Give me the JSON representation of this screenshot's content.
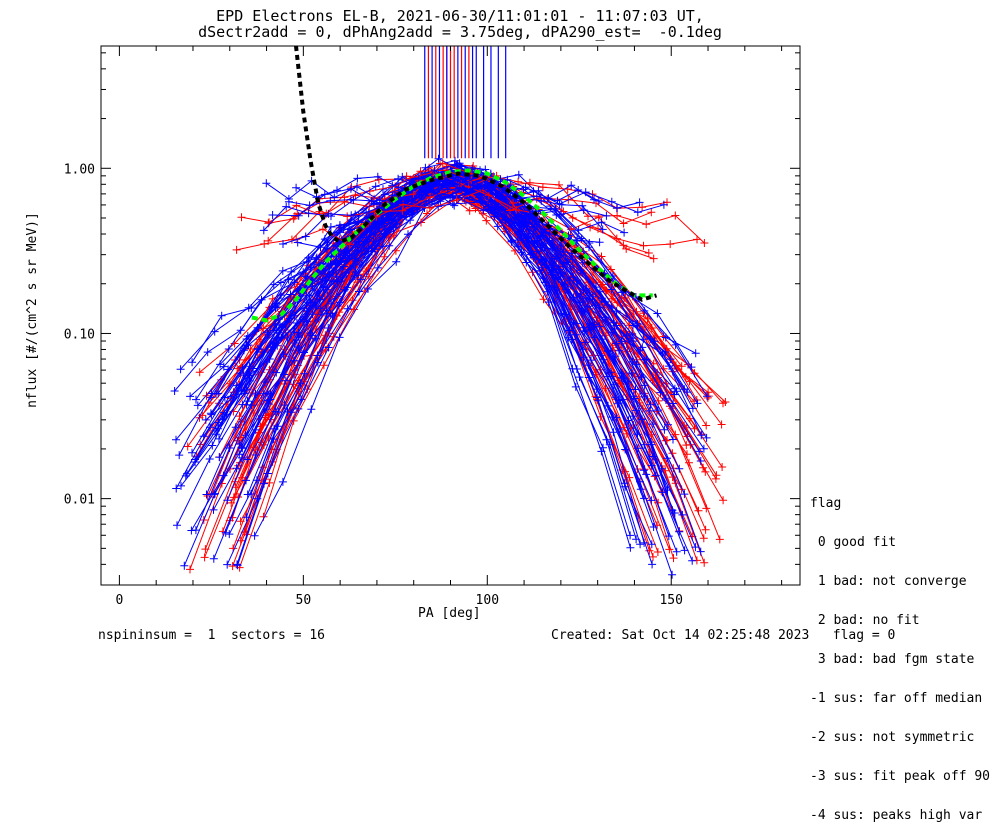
{
  "title": {
    "line1": "EPD Electrons EL-B, 2021-06-30/11:01:01 - 11:07:03 UT,",
    "line2": "dSectr2add = 0, dPhAng2add = 3.75deg, dPA290_est=  -0.1deg"
  },
  "footer": {
    "left": "nspininsum =  1  sectors = 16",
    "right": "Created: Sat Oct 14 02:25:48 2023   flag = 0"
  },
  "legend": {
    "header": "flag",
    "items": [
      " 0 good fit",
      " 1 bad: not converge",
      " 2 bad: no fit",
      " 3 bad: bad fgm state",
      "-1 sus: far off median",
      "-2 sus: not symmetric",
      "-3 sus: fit peak off 90",
      "-4 sus: peaks high var"
    ]
  },
  "chart_data": {
    "type": "line",
    "xlabel": "PA [deg]",
    "ylabel": "nflux [#/(cm^2 s sr MeV)]",
    "xlim": [
      -5,
      185
    ],
    "ylim": [
      0.003,
      5.5
    ],
    "yscale": "log",
    "x_ticks": [
      0,
      50,
      100,
      150
    ],
    "x_tick_labels": [
      "0",
      "50",
      "100",
      "150"
    ],
    "y_ticks": [
      0.01,
      0.1,
      1.0
    ],
    "y_tick_labels": [
      "0.01",
      "0.10",
      "1.00"
    ],
    "colors": {
      "series_a": "#ff0000",
      "series_b": "#0000ff",
      "median": "#000000",
      "fit": "#00ff00"
    },
    "series_groups": [
      {
        "color": "red",
        "count": 48,
        "shape": "peaked",
        "x_range": [
          18,
          165
        ],
        "peak_x": 90,
        "peak_y": 0.85,
        "edge_y_range": [
          0.004,
          0.06
        ]
      },
      {
        "color": "blue",
        "count": 55,
        "shape": "peaked",
        "x_range": [
          15,
          160
        ],
        "peak_x": 92,
        "peak_y": 0.9,
        "edge_y_range": [
          0.004,
          0.08
        ]
      },
      {
        "color": "red",
        "count": 6,
        "shape": "flat",
        "x_range": [
          27,
          160
        ],
        "peak_x": 90,
        "peak_y": 0.85,
        "edge_y_range": [
          0.3,
          0.55
        ]
      },
      {
        "color": "blue",
        "count": 7,
        "shape": "flat",
        "x_range": [
          27,
          150
        ],
        "peak_x": 92,
        "peak_y": 0.85,
        "edge_y_range": [
          0.3,
          0.7
        ]
      }
    ],
    "saturated_lines": {
      "red_x": [
        84,
        86,
        88,
        89,
        90,
        91,
        93,
        95
      ],
      "blue_x": [
        83,
        85,
        87,
        89,
        92,
        94,
        96,
        97,
        99,
        101,
        103,
        105
      ],
      "y_from": 1.15
    },
    "median_curve": {
      "x": [
        48,
        50,
        52,
        54,
        56,
        58,
        60,
        63,
        67,
        72,
        78,
        85,
        92,
        98,
        104,
        110,
        116,
        122,
        128,
        133,
        138,
        142,
        146
      ],
      "y": [
        5.5,
        2.2,
        1.1,
        0.62,
        0.45,
        0.38,
        0.36,
        0.38,
        0.46,
        0.6,
        0.75,
        0.85,
        0.93,
        0.9,
        0.78,
        0.62,
        0.46,
        0.34,
        0.26,
        0.21,
        0.18,
        0.16,
        0.17
      ]
    },
    "fit_curve": {
      "x": [
        36,
        40,
        44,
        48,
        52,
        56,
        60,
        65,
        70,
        75,
        80,
        85,
        90,
        95,
        100,
        105,
        110,
        115,
        120,
        125,
        130,
        135,
        140,
        145
      ],
      "y": [
        0.125,
        0.12,
        0.13,
        0.16,
        0.21,
        0.27,
        0.33,
        0.42,
        0.53,
        0.65,
        0.78,
        0.88,
        0.95,
        0.97,
        0.93,
        0.82,
        0.68,
        0.54,
        0.42,
        0.32,
        0.25,
        0.2,
        0.17,
        0.17
      ]
    }
  }
}
